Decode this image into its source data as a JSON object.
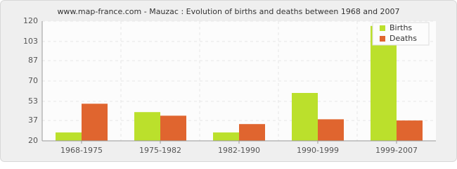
{
  "chart_data": {
    "type": "bar",
    "title": "www.map-france.com - Mauzac : Evolution of births and deaths between 1968 and 2007",
    "categories": [
      "1968-1975",
      "1975-1982",
      "1982-1990",
      "1990-1999",
      "1999-2007"
    ],
    "series": [
      {
        "name": "Births",
        "color": "#bbe02c",
        "values": [
          27,
          44,
          27,
          60,
          116
        ]
      },
      {
        "name": "Deaths",
        "color": "#e0652f",
        "values": [
          51,
          41,
          34,
          38,
          37
        ]
      }
    ],
    "ylim": [
      20,
      120
    ],
    "yticks": [
      20,
      37,
      53,
      70,
      87,
      103,
      120
    ],
    "grid": true,
    "legend": "top-right"
  }
}
